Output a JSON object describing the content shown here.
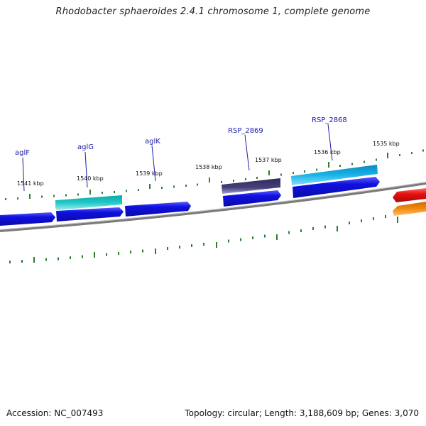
{
  "title": "Rhodobacter sphaeroides 2.4.1 chromosome 1, complete genome",
  "footer": {
    "accession": "Accession: NC_007493",
    "info": "Topology: circular; Length: 3,188,609 bp; Genes: 3,070"
  },
  "scale_labels": [
    "1541 kbp",
    "1540 kbp",
    "1539 kbp",
    "1538 kbp",
    "1537 kbp",
    "1536 kbp",
    "1535 kbp"
  ],
  "gene_labels": [
    "aglF",
    "aglG",
    "aglK",
    "RSP_2869",
    "RSP_2868"
  ],
  "colors": {
    "backbone": "#7a7a7a",
    "tick": "#2e7d32",
    "blue_gene": "#1010e0",
    "teal_gene": "#22c8c8",
    "purple_gene": "#46407a",
    "skyblue_gene": "#18b4e8",
    "red_gene": "#e81010",
    "orange_gene": "#f08a10",
    "label_blue": "#1a1aaa"
  }
}
